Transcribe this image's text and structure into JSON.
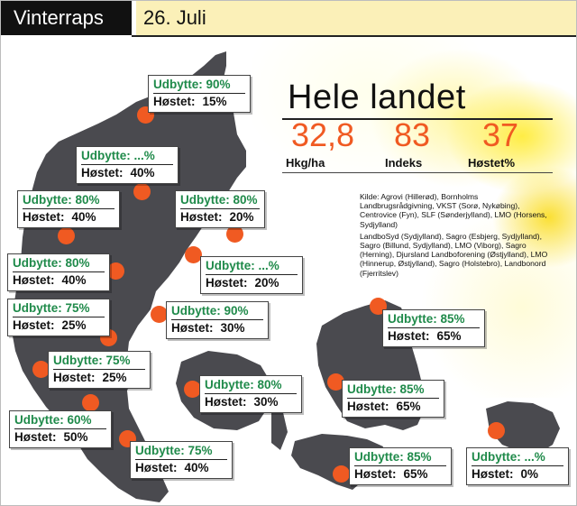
{
  "header": {
    "section": "Vinterraps",
    "date": "26. Juli"
  },
  "summary": {
    "title": "Hele landet",
    "stats": [
      {
        "value": "32,8",
        "label": "Hkg/ha"
      },
      {
        "value": "83",
        "label": "Indeks"
      },
      {
        "value": "37",
        "label": "Høstet%"
      }
    ]
  },
  "source": [
    "Kilde: Agrovi (Hillerød), Bornholms Landbrugsrådgivning, VKST (Sorø, Nykøbing), Centrovice (Fyn), SLF (Sønderjylland), LMO (Horsens, Sydjylland)",
    "LandboSyd (Sydjylland), Sagro (Esbjerg, Sydjylland), Sagro (Billund, Sydjylland), LMO (Viborg), Sagro (Herning), Djursland Landboforening (Østjylland), LMO (Hinnerup, Østjylland), Sagro (Holstebro), Landbonord (Fjerritslev)"
  ],
  "labels": {
    "udbytte": "Udbytte:",
    "hoestet": "Høstet:"
  },
  "regions": [
    {
      "udbytte": "90%",
      "hoestet": "15%"
    },
    {
      "udbytte": "...%",
      "hoestet": "40%"
    },
    {
      "udbytte": "80%",
      "hoestet": "40%"
    },
    {
      "udbytte": "80%",
      "hoestet": "20%"
    },
    {
      "udbytte": "80%",
      "hoestet": "40%"
    },
    {
      "udbytte": "...%",
      "hoestet": "20%"
    },
    {
      "udbytte": "75%",
      "hoestet": "25%"
    },
    {
      "udbytte": "90%",
      "hoestet": "30%"
    },
    {
      "udbytte": "85%",
      "hoestet": "65%"
    },
    {
      "udbytte": "75%",
      "hoestet": "25%"
    },
    {
      "udbytte": "80%",
      "hoestet": "30%"
    },
    {
      "udbytte": "85%",
      "hoestet": "65%"
    },
    {
      "udbytte": "60%",
      "hoestet": "50%"
    },
    {
      "udbytte": "75%",
      "hoestet": "40%"
    },
    {
      "udbytte": "85%",
      "hoestet": "65%"
    },
    {
      "udbytte": "...%",
      "hoestet": "0%"
    }
  ],
  "colors": {
    "accent": "#f05a22",
    "green": "#1f8a4a",
    "land": "#4a4a4f"
  }
}
